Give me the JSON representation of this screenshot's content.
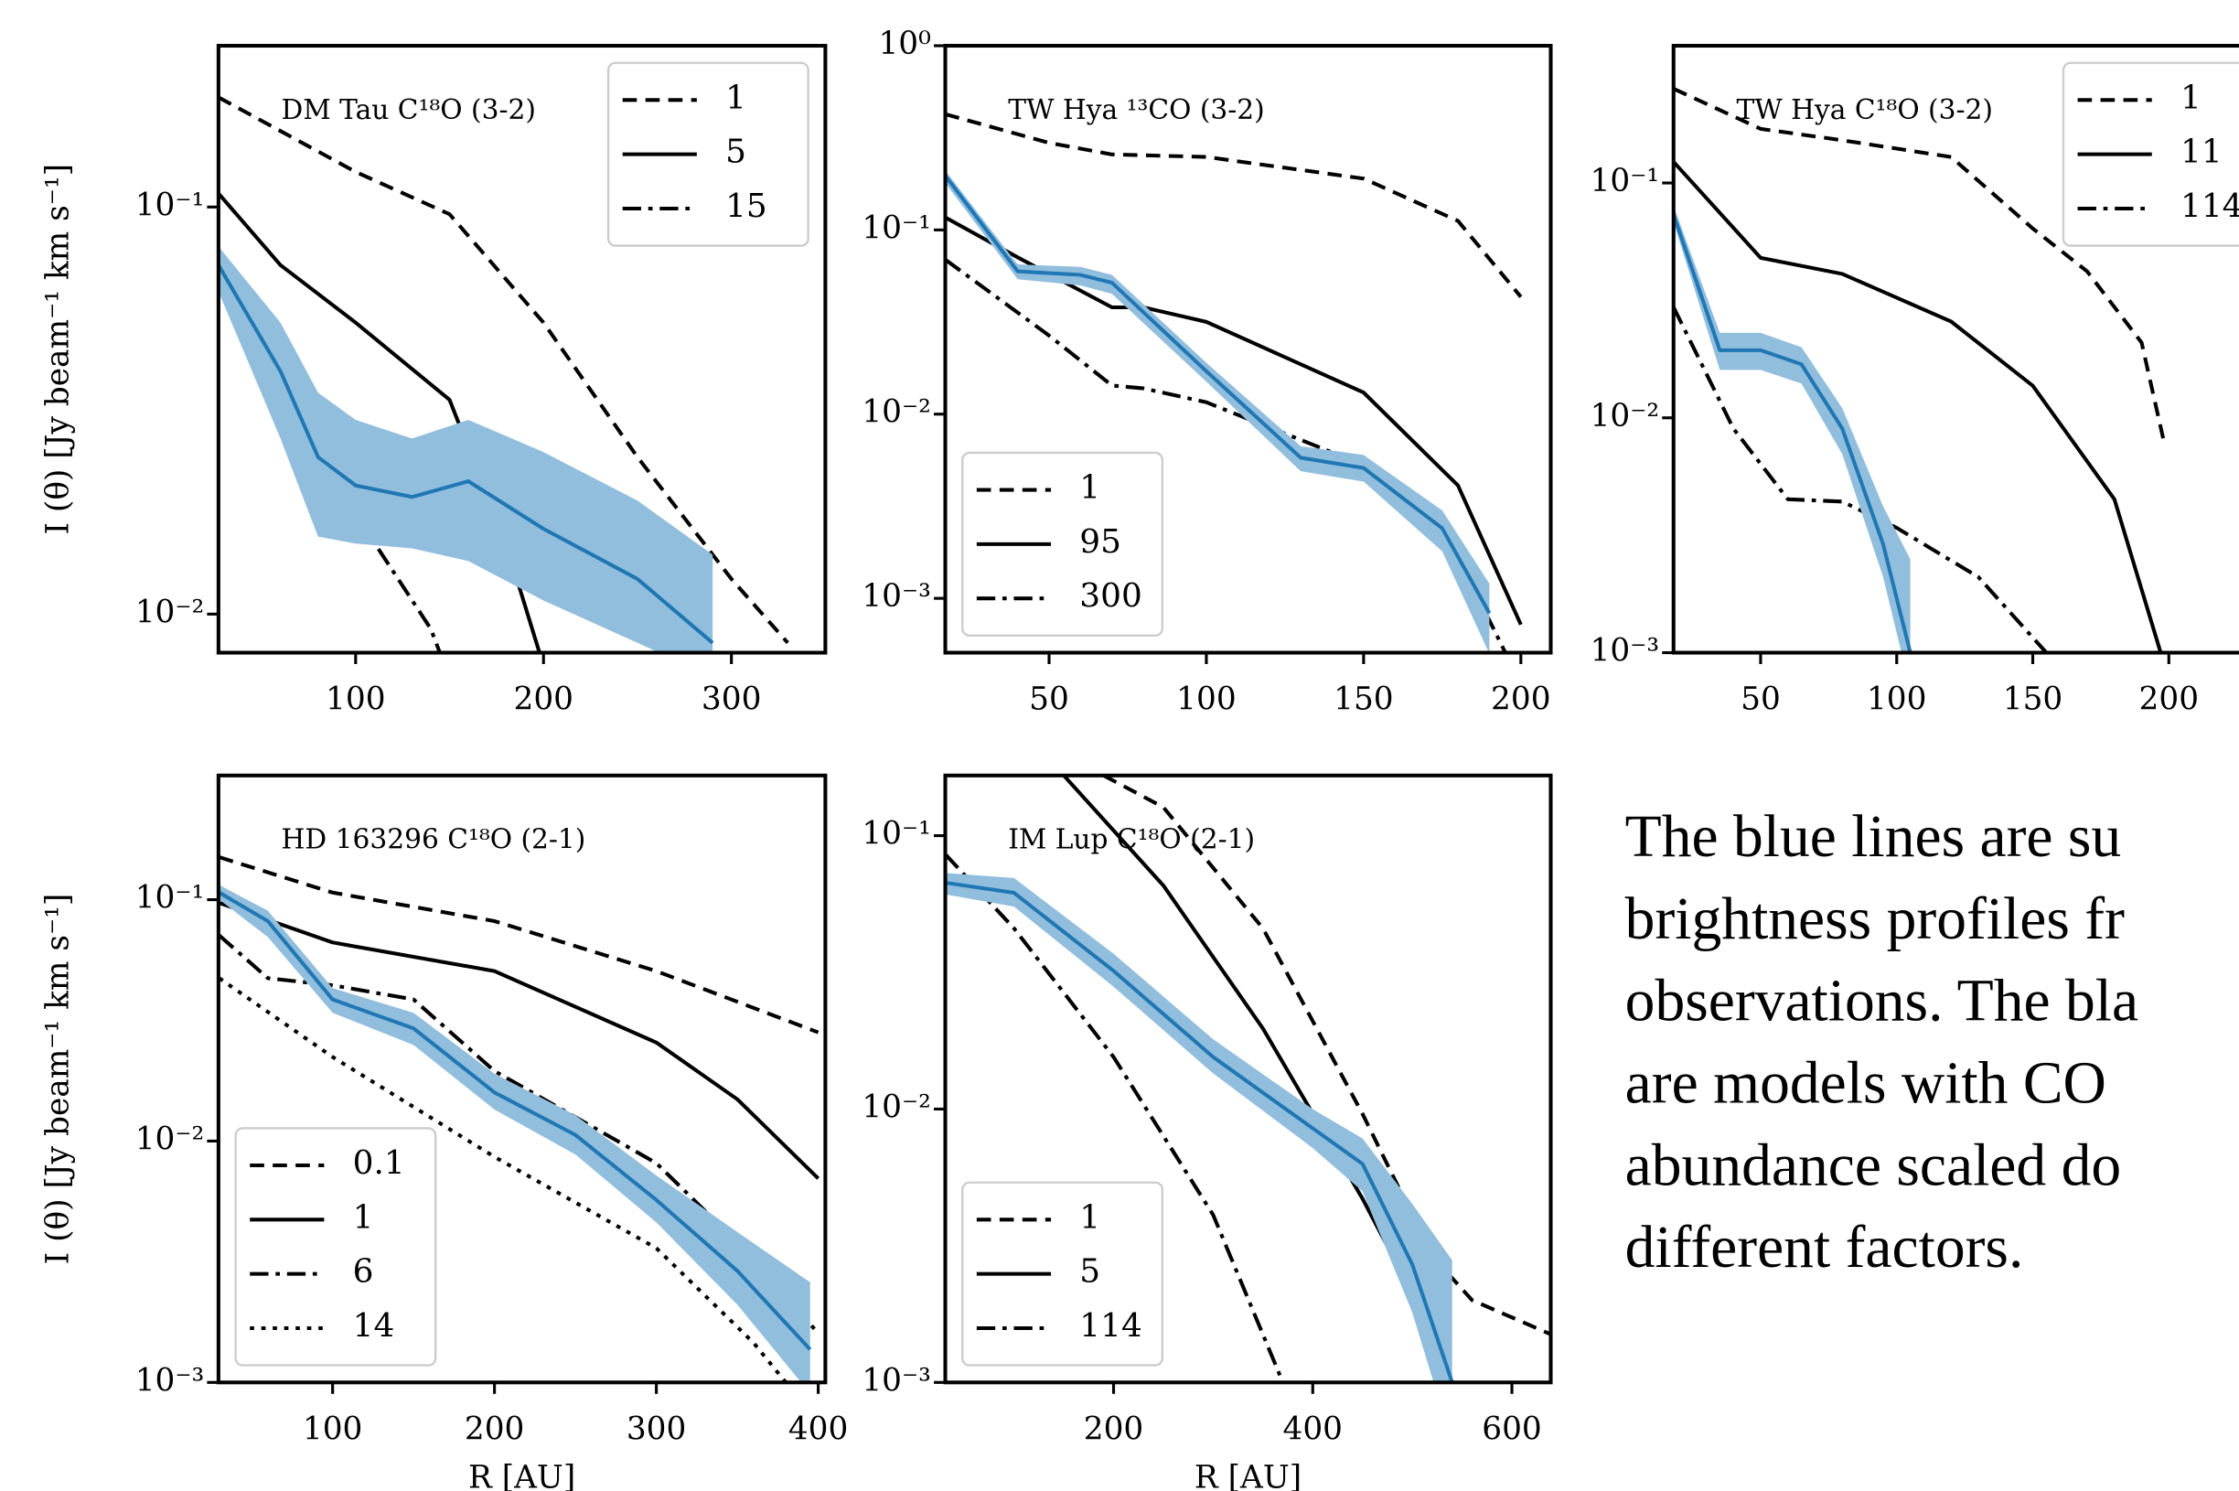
{
  "chart_data": [
    {
      "type": "line",
      "annotation": "DM Tau C¹⁸O (3-2)",
      "ylabel": "I (θ) [Jy beam⁻¹ km s⁻¹]",
      "log_y": true,
      "grid": false,
      "legend": "upper right",
      "band_color": "#92bedd",
      "xlim": [
        27,
        350
      ],
      "ylim": [
        0.00804,
        0.249
      ],
      "xticks": [
        100,
        200,
        300
      ],
      "yticks": [
        {
          "value": 0.1,
          "label": "10⁻¹"
        },
        {
          "value": 0.01,
          "label": "10⁻²"
        }
      ],
      "series": [
        {
          "name": "1",
          "color": "#000000",
          "style": "dashed",
          "x": [
            27,
            100,
            150,
            200,
            250,
            300,
            330
          ],
          "values": [
            0.186,
            0.122,
            0.096,
            0.052,
            0.0243,
            0.0122,
            0.0085
          ]
        },
        {
          "name": "5",
          "color": "#000000",
          "style": "solid",
          "x": [
            27,
            60,
            100,
            150,
            180,
            198
          ],
          "values": [
            0.108,
            0.072,
            0.052,
            0.0336,
            0.0149,
            0.008
          ]
        },
        {
          "name": "15",
          "color": "#000000",
          "style": "dashdot",
          "x": [
            27,
            60,
            100,
            140,
            145
          ],
          "values": [
            0.0754,
            0.0336,
            0.0176,
            0.0092,
            0.008
          ]
        },
        {
          "color": "#1f77b4",
          "style": "solid",
          "x": [
            27,
            60,
            80,
            100,
            130,
            160,
            200,
            250,
            290
          ],
          "values": [
            0.072,
            0.0395,
            0.0243,
            0.0207,
            0.0194,
            0.0212,
            0.0162,
            0.0122,
            0.0085
          ],
          "lower": [
            0.062,
            0.027,
            0.0155,
            0.0149,
            0.0145,
            0.0135,
            0.0108,
            0.0085,
            0.007
          ],
          "upper": [
            0.08,
            0.052,
            0.035,
            0.03,
            0.027,
            0.03,
            0.025,
            0.019,
            0.014
          ]
        }
      ]
    },
    {
      "type": "line",
      "annotation": "TW Hya ¹³CO (3-2)",
      "log_y": true,
      "grid": false,
      "legend": "lower left",
      "band_color": "#92bedd",
      "xlim": [
        17,
        209.5
      ],
      "ylim": [
        0.000507,
        1
      ],
      "xticks": [
        50,
        100,
        150,
        200
      ],
      "yticks": [
        {
          "value": 1,
          "label": "10⁰"
        },
        {
          "value": 0.1,
          "label": "10⁻¹"
        },
        {
          "value": 0.01,
          "label": "10⁻²"
        },
        {
          "value": 0.001,
          "label": "10⁻³"
        }
      ],
      "series": [
        {
          "name": "1",
          "color": "#000000",
          "style": "dashed",
          "x": [
            17,
            50,
            70,
            100,
            150,
            180,
            200
          ],
          "values": [
            0.425,
            0.297,
            0.257,
            0.249,
            0.19,
            0.112,
            0.0433
          ]
        },
        {
          "name": "95",
          "color": "#000000",
          "style": "solid",
          "x": [
            17,
            40,
            70,
            80,
            100,
            150,
            180,
            200
          ],
          "values": [
            0.117,
            0.071,
            0.038,
            0.038,
            0.0317,
            0.0131,
            0.0041,
            0.00072
          ]
        },
        {
          "name": "300",
          "color": "#000000",
          "style": "dashdot",
          "x": [
            17,
            50,
            70,
            80,
            100,
            150,
            180,
            195
          ],
          "values": [
            0.069,
            0.0267,
            0.0143,
            0.0138,
            0.0116,
            0.0053,
            0.00168,
            0.00051
          ]
        },
        {
          "color": "#1f77b4",
          "style": "solid",
          "x": [
            17,
            40,
            60,
            70,
            100,
            130,
            150,
            175,
            190
          ],
          "values": [
            0.197,
            0.0596,
            0.057,
            0.0517,
            0.0171,
            0.0058,
            0.0051,
            0.0024,
            0.00083
          ],
          "lower": [
            0.18,
            0.054,
            0.05,
            0.045,
            0.015,
            0.0049,
            0.0043,
            0.0018,
            0.0005
          ],
          "upper": [
            0.21,
            0.065,
            0.063,
            0.057,
            0.019,
            0.0067,
            0.006,
            0.003,
            0.0012
          ]
        }
      ]
    },
    {
      "type": "line",
      "annotation": "TW Hya C¹⁸O (3-2)",
      "log_y": true,
      "grid": false,
      "legend": "upper right",
      "band_color": "#92bedd",
      "xlim": [
        18,
        241
      ],
      "ylim": [
        0.001,
        0.384
      ],
      "xticks": [
        50,
        100,
        150,
        200
      ],
      "yticks": [
        {
          "value": 0.1,
          "label": "10⁻¹"
        },
        {
          "value": 0.01,
          "label": "10⁻²"
        },
        {
          "value": 0.001,
          "label": "10⁻³"
        }
      ],
      "series": [
        {
          "name": "1",
          "color": "#000000",
          "style": "dashed",
          "x": [
            18,
            50,
            80,
            120,
            150,
            170,
            190,
            198
          ],
          "values": [
            0.252,
            0.17,
            0.152,
            0.129,
            0.064,
            0.042,
            0.0209,
            0.0081
          ]
        },
        {
          "name": "11",
          "color": "#000000",
          "style": "solid",
          "x": [
            18,
            50,
            80,
            120,
            150,
            180,
            197
          ],
          "values": [
            0.123,
            0.048,
            0.041,
            0.0257,
            0.0137,
            0.0045,
            0.001
          ]
        },
        {
          "name": "114",
          "color": "#000000",
          "style": "dashdot",
          "x": [
            18,
            40,
            60,
            80,
            100,
            130,
            155
          ],
          "values": [
            0.0296,
            0.009,
            0.0045,
            0.0044,
            0.0034,
            0.0021,
            0.001
          ]
        },
        {
          "color": "#1f77b4",
          "style": "solid",
          "x": [
            18,
            35,
            50,
            65,
            80,
            95,
            105
          ],
          "values": [
            0.0735,
            0.0194,
            0.0194,
            0.0169,
            0.009,
            0.0029,
            0.001
          ],
          "lower": [
            0.068,
            0.016,
            0.016,
            0.014,
            0.007,
            0.0021,
            0.0007
          ],
          "upper": [
            0.08,
            0.023,
            0.023,
            0.02,
            0.011,
            0.0042,
            0.0025
          ]
        }
      ]
    },
    {
      "type": "line",
      "annotation": "HD 163296 C¹⁸O (2-1)",
      "ylabel": "I (θ) [Jy beam⁻¹ km s⁻¹]",
      "xlabel": "R [AU]",
      "log_y": true,
      "grid": false,
      "legend": "lower left",
      "band_color": "#92bedd",
      "xlim": [
        29.5,
        404.4
      ],
      "ylim": [
        0.001,
        0.327
      ],
      "xticks": [
        100,
        200,
        300,
        400
      ],
      "yticks": [
        {
          "value": 0.1,
          "label": "10⁻¹"
        },
        {
          "value": 0.01,
          "label": "10⁻²"
        },
        {
          "value": 0.001,
          "label": "10⁻³"
        }
      ],
      "series": [
        {
          "name": "0.1",
          "color": "#000000",
          "style": "dashed",
          "x": [
            30,
            100,
            200,
            300,
            400
          ],
          "values": [
            0.15,
            0.107,
            0.0815,
            0.0506,
            0.0282
          ]
        },
        {
          "name": "1",
          "color": "#000000",
          "style": "solid",
          "x": [
            30,
            100,
            200,
            300,
            350,
            400
          ],
          "values": [
            0.097,
            0.0665,
            0.0506,
            0.0256,
            0.0149,
            0.007
          ]
        },
        {
          "name": "6",
          "color": "#000000",
          "style": "dashdot",
          "x": [
            30,
            60,
            100,
            150,
            200,
            300,
            350,
            400
          ],
          "values": [
            0.0711,
            0.0473,
            0.0442,
            0.0386,
            0.0195,
            0.0081,
            0.0038,
            0.0016
          ]
        },
        {
          "name": "14",
          "color": "#000000",
          "style": "dotted",
          "x": [
            30,
            100,
            200,
            300,
            360,
            380
          ],
          "values": [
            0.0473,
            0.0223,
            0.0086,
            0.0036,
            0.00146,
            0.001
          ]
        },
        {
          "color": "#1f77b4",
          "style": "solid",
          "x": [
            30,
            60,
            100,
            150,
            200,
            250,
            300,
            350,
            395
          ],
          "values": [
            0.107,
            0.0815,
            0.0386,
            0.0293,
            0.0159,
            0.0106,
            0.0057,
            0.0029,
            0.00137
          ],
          "lower": [
            0.1,
            0.07,
            0.034,
            0.025,
            0.0135,
            0.0088,
            0.0046,
            0.0021,
            0.0009
          ],
          "upper": [
            0.115,
            0.09,
            0.043,
            0.034,
            0.019,
            0.0128,
            0.0072,
            0.0042,
            0.0026
          ]
        }
      ]
    },
    {
      "type": "line",
      "annotation": "IM Lup C¹⁸O (2-1)",
      "xlabel": "R [AU]",
      "log_y": true,
      "grid": false,
      "legend": "lower left",
      "band_color": "#92bedd",
      "xlim": [
        31,
        639
      ],
      "ylim": [
        0.001,
        0.166
      ],
      "xticks": [
        200,
        400,
        600
      ],
      "yticks": [
        {
          "value": 0.1,
          "label": "10⁻¹"
        },
        {
          "value": 0.01,
          "label": "10⁻²"
        },
        {
          "value": 0.001,
          "label": "10⁻³"
        }
      ],
      "series": [
        {
          "name": "1",
          "color": "#000000",
          "style": "dashed",
          "x": [
            190,
            250,
            350,
            450,
            520,
            560,
            639
          ],
          "values": [
            0.166,
            0.127,
            0.0458,
            0.0096,
            0.0029,
            0.002,
            0.0015
          ]
        },
        {
          "name": "5",
          "color": "#000000",
          "style": "solid",
          "x": [
            150,
            250,
            350,
            450,
            510,
            540
          ],
          "values": [
            0.166,
            0.0657,
            0.0197,
            0.0047,
            0.0018,
            0.001
          ]
        },
        {
          "name": "114",
          "color": "#000000",
          "style": "dashdot",
          "x": [
            31,
            100,
            200,
            300,
            370
          ],
          "values": [
            0.0855,
            0.0458,
            0.0155,
            0.0041,
            0.001
          ]
        },
        {
          "color": "#1f77b4",
          "style": "solid",
          "x": [
            31,
            100,
            200,
            300,
            400,
            450,
            500,
            540
          ],
          "values": [
            0.0673,
            0.0618,
            0.032,
            0.0155,
            0.0085,
            0.0063,
            0.0027,
            0.001
          ],
          "lower": [
            0.061,
            0.055,
            0.028,
            0.0135,
            0.0072,
            0.005,
            0.0018,
            0.0006
          ],
          "upper": [
            0.073,
            0.07,
            0.037,
            0.018,
            0.01,
            0.0078,
            0.0045,
            0.0028
          ]
        }
      ]
    }
  ],
  "caption": [
    "The blue lines are su",
    "brightness profiles fr",
    "observations. The bla",
    "are models with CO",
    "abundance scaled do",
    "different factors."
  ]
}
